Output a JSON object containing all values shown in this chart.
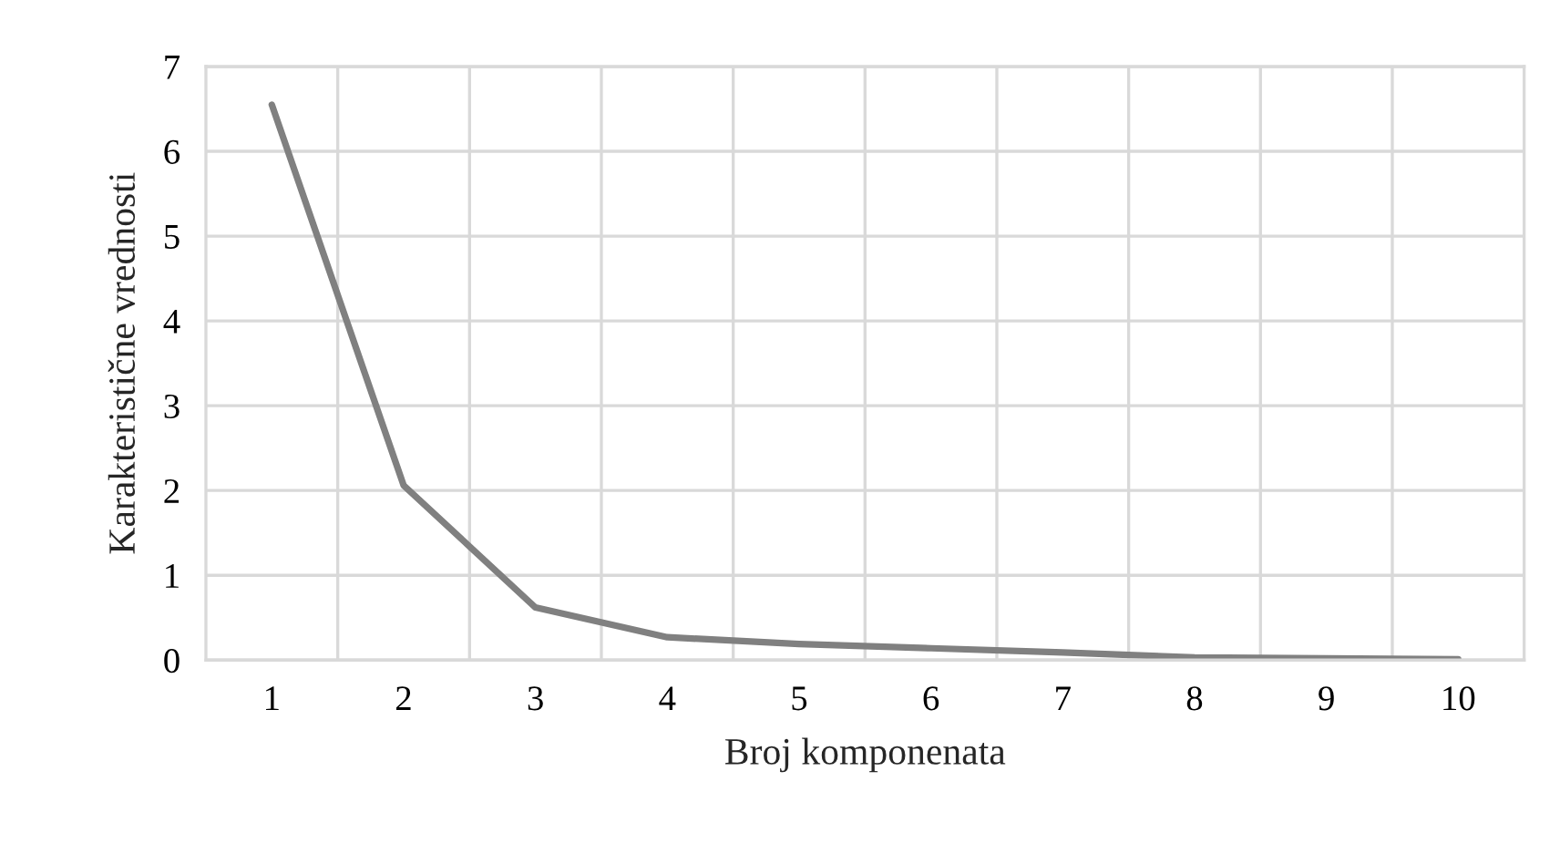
{
  "chart_data": {
    "type": "line",
    "xlabel": "Broj komponenata",
    "ylabel": "Karakteristične vrednosti",
    "categories": [
      "1",
      "2",
      "3",
      "4",
      "5",
      "6",
      "7",
      "8",
      "9",
      "10"
    ],
    "series": [
      {
        "color": "#808080",
        "values": [
          6.55,
          2.06,
          0.62,
          0.27,
          0.19,
          0.14,
          0.09,
          0.03,
          0.02,
          0.01
        ]
      }
    ],
    "ylim": [
      0,
      7
    ],
    "yticks": [
      0,
      1,
      2,
      3,
      4,
      5,
      6,
      7
    ],
    "grid": true,
    "legend": false
  }
}
